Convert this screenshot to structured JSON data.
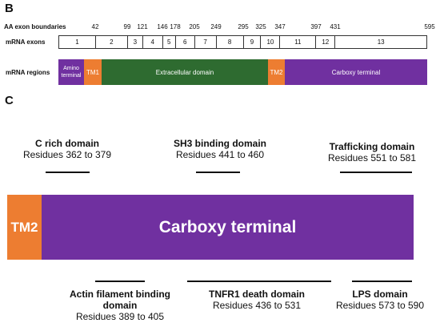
{
  "panel_b": {
    "label": "B",
    "aa_label": "AA exon boundaries",
    "aa_ticks": [
      "42",
      "99",
      "121",
      "146",
      "178",
      "205",
      "249",
      "295",
      "325",
      "347",
      "397",
      "431",
      "595"
    ],
    "mrna_exons_label": "mRNA exons",
    "exons": [
      "1",
      "2",
      "3",
      "4",
      "5",
      "6",
      "7",
      "8",
      "9",
      "10",
      "11",
      "12",
      "13"
    ],
    "mrna_regions_label": "mRNA regions",
    "regions": [
      {
        "label": "Amino terminal",
        "color": "#7030a0"
      },
      {
        "label": "TM1",
        "color": "#ed7d31"
      },
      {
        "label": "Extracellular domain",
        "color": "#2e6b30"
      },
      {
        "label": "TM2",
        "color": "#ed7d31"
      },
      {
        "label": "Carboxy terminal",
        "color": "#7030a0"
      }
    ]
  },
  "panel_c": {
    "label": "C",
    "tm2_label": "TM2",
    "carboxy_label": "Carboxy terminal",
    "tm2_color": "#ed7d31",
    "carboxy_color": "#7030a0",
    "top_domains": [
      {
        "title": "C rich domain",
        "residues": "Residues 362 to 379"
      },
      {
        "title": "SH3 binding domain",
        "residues": "Residues 441 to 460"
      },
      {
        "title": "Trafficking domain",
        "residues": "Residues 551 to 581"
      }
    ],
    "bottom_domains": [
      {
        "title": "Actin filament binding domain",
        "residues": "Residues 389 to 405"
      },
      {
        "title": "TNFR1 death domain",
        "residues": "Residues 436 to 531"
      },
      {
        "title": "LPS domain",
        "residues": "Residues 573 to 590"
      }
    ]
  }
}
